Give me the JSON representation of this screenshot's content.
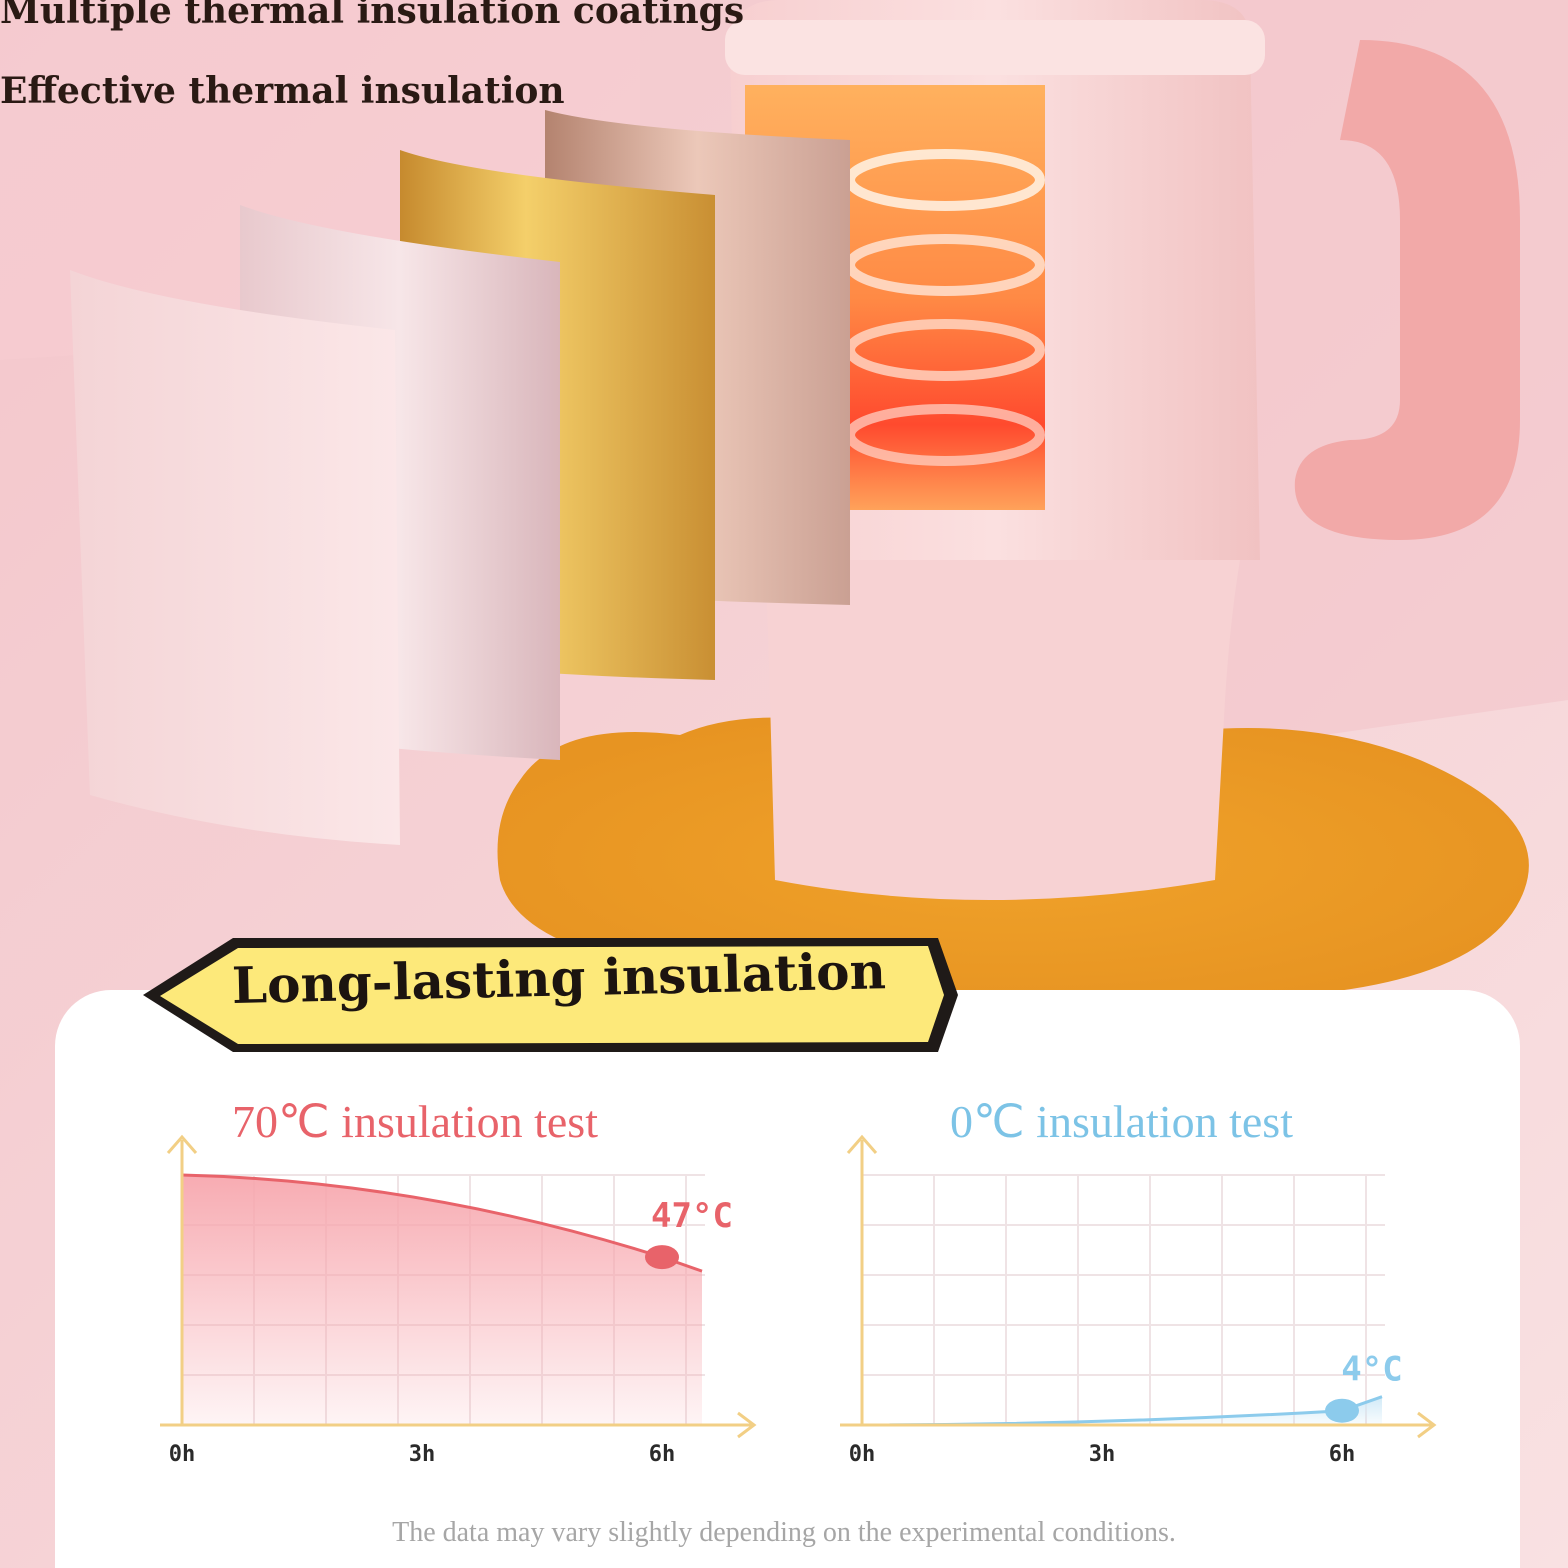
{
  "headline": {
    "line1": "Multiple thermal insulation coatings",
    "line2": "Effective thermal insulation"
  },
  "banner": {
    "title": "Long-lasting insulation"
  },
  "colors": {
    "hot": "#e8636a",
    "hot_fill": "#f7a7ae",
    "cold": "#8ccbec",
    "cold_fill": "#cfe9f7",
    "axis": "#f2cf85",
    "grid": "#efe3e5",
    "banner_fill": "#fde97a"
  },
  "chart_data": [
    {
      "type": "area",
      "title": "70℃ insulation test",
      "categories": [
        "0h",
        "3h",
        "6h"
      ],
      "x": [
        0,
        6
      ],
      "series": [
        {
          "values": [
            70,
            47
          ]
        }
      ],
      "ylim": [
        0,
        70
      ],
      "annotations": [
        {
          "x": 6,
          "y": 47,
          "label": "47°C"
        }
      ],
      "grid": true
    },
    {
      "type": "area",
      "title": "0℃ insulation test",
      "categories": [
        "0h",
        "3h",
        "6h"
      ],
      "x": [
        0,
        6
      ],
      "series": [
        {
          "values": [
            0,
            4
          ]
        }
      ],
      "ylim": [
        0,
        70
      ],
      "annotations": [
        {
          "x": 6,
          "y": 4,
          "label": "4°C"
        }
      ],
      "grid": true
    }
  ],
  "disclaimer": "The data may vary slightly depending on the experimental conditions."
}
